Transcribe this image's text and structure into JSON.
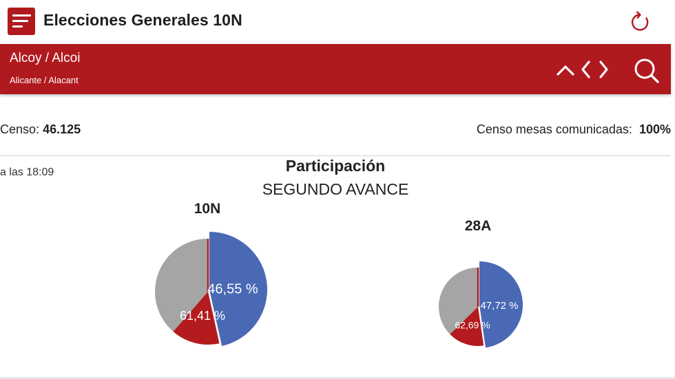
{
  "app": {
    "title": "Elecciones Generales 10N"
  },
  "location": {
    "municipality": "Alcoy / Alcoi",
    "province": "Alicante / Alacant"
  },
  "census": {
    "label": "Censo:",
    "value": "46.125",
    "reported_label": "Censo mesas comunicadas:",
    "reported_value": "100%"
  },
  "timestamp": "a las 18:09",
  "icons": {
    "menu": "menu-icon",
    "refresh": "refresh-icon",
    "up": "chevron-up-icon",
    "prev_next": "chevron-left-right-icon",
    "search": "search-icon"
  },
  "colors": {
    "brand": "#b01a1f",
    "blue": "#4a69b4",
    "red": "#b31b1e",
    "gray": "#a5a5a5"
  },
  "chart_data": {
    "type": "pie",
    "title": "Participación",
    "subtitle": "SEGUNDO AVANCE",
    "charts": [
      {
        "name": "10N",
        "current": 46.55,
        "current_label": "46,55 %",
        "previous": 61.41,
        "previous_label": "61,41 %"
      },
      {
        "name": "28A",
        "current": 47.72,
        "current_label": "47,72 %",
        "previous": 62.69,
        "previous_label": "62,69 %"
      }
    ]
  }
}
